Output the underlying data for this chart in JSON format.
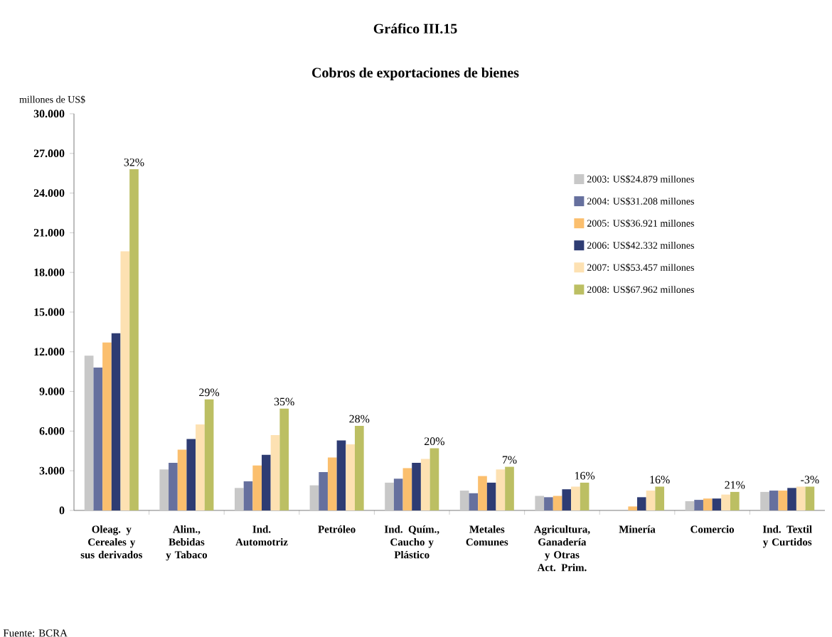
{
  "chart_data": {
    "type": "bar",
    "title": "Gráfico III.15",
    "subtitle": "Cobros de exportaciones de bienes",
    "ylabel": "millones de US$",
    "categories": [
      "Oleag. y Cereales y sus derivados",
      "Alim., Bebidas y Tabaco",
      "Ind. Automotriz",
      "Petróleo",
      "Ind. Quím., Caucho y Plástico",
      "Metales Comunes",
      "Agricultura, Ganadería y Otras Act. Prim.",
      "Minería",
      "Comercio",
      "Ind. Textil y Curtidos"
    ],
    "series": [
      {
        "name": "2003: US$24.879 millones",
        "color": "#c8c8c8",
        "values": [
          11700,
          3100,
          1700,
          1900,
          2100,
          1500,
          1100,
          0,
          700,
          1400
        ]
      },
      {
        "name": "2004: US$31.208 millones",
        "color": "#66709e",
        "values": [
          10800,
          3600,
          2200,
          2900,
          2400,
          1300,
          1000,
          0,
          800,
          1500
        ]
      },
      {
        "name": "2005: US$36.921 millones",
        "color": "#fbbf6e",
        "values": [
          12700,
          4600,
          3400,
          4000,
          3200,
          2600,
          1100,
          300,
          900,
          1500
        ]
      },
      {
        "name": "2006: US$42.332 millones",
        "color": "#2e3c73",
        "values": [
          13400,
          5400,
          4200,
          5300,
          3600,
          2100,
          1600,
          1000,
          900,
          1700
        ]
      },
      {
        "name": "2007: US$53.457 millones",
        "color": "#fde1b2",
        "values": [
          19600,
          6500,
          5700,
          5000,
          3900,
          3100,
          1800,
          1500,
          1200,
          1800
        ]
      },
      {
        "name": "2008: US$67.962 millones",
        "color": "#bcbf63",
        "values": [
          25800,
          8400,
          7700,
          6400,
          4700,
          3300,
          2100,
          1800,
          1400,
          1800
        ]
      }
    ],
    "ylim": [
      0,
      30000
    ],
    "yticks": [
      {
        "value": 0,
        "label": "0"
      },
      {
        "value": 3000,
        "label": "3.000"
      },
      {
        "value": 6000,
        "label": "6.000"
      },
      {
        "value": 9000,
        "label": "9.000"
      },
      {
        "value": 12000,
        "label": "12.000"
      },
      {
        "value": 15000,
        "label": "15.000"
      },
      {
        "value": 18000,
        "label": "18.000"
      },
      {
        "value": 21000,
        "label": "21.000"
      },
      {
        "value": 24000,
        "label": "24.000"
      },
      {
        "value": 27000,
        "label": "27.000"
      },
      {
        "value": 30000,
        "label": "30.000"
      }
    ],
    "legend": "top right",
    "grid": false,
    "annotations": [
      "32%",
      "29%",
      "35%",
      "28%",
      "20%",
      "7%",
      "16%",
      "16%",
      "21%",
      "-3%",
      "Fuente: BCRA"
    ]
  }
}
